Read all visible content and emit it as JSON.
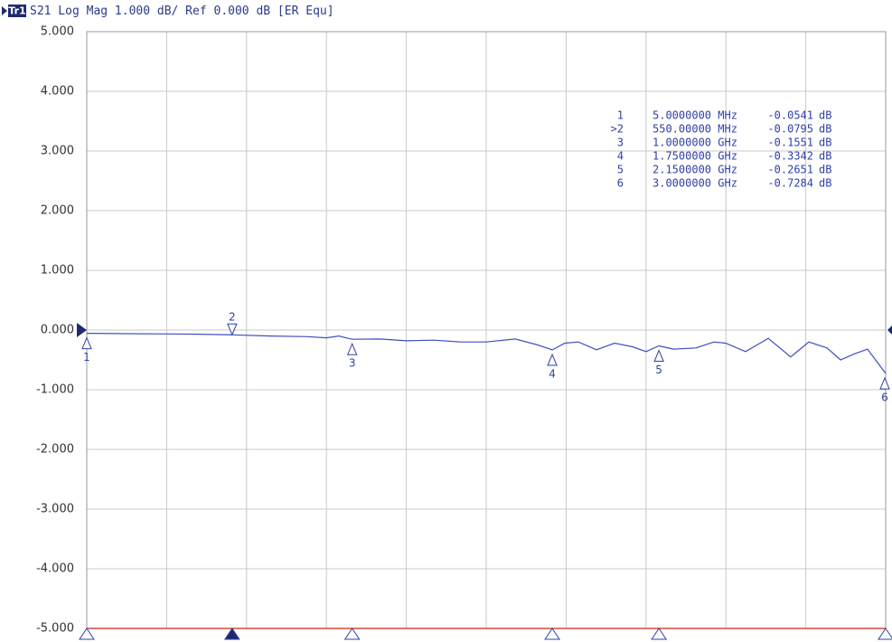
{
  "chart_data": {
    "type": "line",
    "trace_badge": "Tr1",
    "title": "S21 Log Mag 1.000 dB/ Ref 0.000 dB [ER Equ]",
    "xlim": [
      5,
      3000
    ],
    "ylim": [
      -5,
      5
    ],
    "yticks": [
      {
        "value": 5,
        "label": "5.000"
      },
      {
        "value": 4,
        "label": "4.000"
      },
      {
        "value": 3,
        "label": "3.000"
      },
      {
        "value": 2,
        "label": "2.000"
      },
      {
        "value": 1,
        "label": "1.000"
      },
      {
        "value": 0,
        "label": "0.000"
      },
      {
        "value": -1,
        "label": "-1.000"
      },
      {
        "value": -2,
        "label": "-2.000"
      },
      {
        "value": -3,
        "label": "-3.000"
      },
      {
        "value": -4,
        "label": "-4.000"
      },
      {
        "value": -5,
        "label": "-5.000"
      }
    ],
    "grid": true,
    "series": [
      {
        "color": "#3f4fbf",
        "x": [
          5,
          154,
          303,
          425,
          550,
          696,
          832,
          903,
          950,
          1000,
          1103,
          1204,
          1306,
          1408,
          1503,
          1611,
          1696,
          1750,
          1797,
          1848,
          1916,
          1984,
          2051,
          2102,
          2150,
          2204,
          2289,
          2356,
          2400,
          2475,
          2560,
          2644,
          2712,
          2780,
          2831,
          2882,
          2932,
          3000
        ],
        "values": [
          -0.054,
          -0.06,
          -0.065,
          -0.07,
          -0.08,
          -0.1,
          -0.11,
          -0.13,
          -0.1,
          -0.155,
          -0.15,
          -0.18,
          -0.17,
          -0.2,
          -0.2,
          -0.15,
          -0.25,
          -0.334,
          -0.22,
          -0.2,
          -0.33,
          -0.22,
          -0.28,
          -0.36,
          -0.265,
          -0.32,
          -0.3,
          -0.2,
          -0.22,
          -0.36,
          -0.14,
          -0.45,
          -0.2,
          -0.3,
          -0.5,
          -0.4,
          -0.32,
          -0.728
        ]
      }
    ],
    "marker_unit": "dB",
    "markers": [
      {
        "label": "1",
        "table_label": "1",
        "frequency": "5.0000000 MHz",
        "x": 5,
        "value": -0.0541
      },
      {
        "label": "2",
        "table_label": ">2",
        "frequency": "550.00000 MHz",
        "x": 550,
        "value": -0.0795
      },
      {
        "label": "3",
        "table_label": "3",
        "frequency": "1.0000000 GHz",
        "x": 1000,
        "value": -0.1551
      },
      {
        "label": "4",
        "table_label": "4",
        "frequency": "1.7500000 GHz",
        "x": 1750,
        "value": -0.3342
      },
      {
        "label": "5",
        "table_label": "5",
        "frequency": "2.1500000 GHz",
        "x": 2150,
        "value": -0.2651
      },
      {
        "label": "6",
        "table_label": "6",
        "frequency": "3.0000000 GHz",
        "x": 3000,
        "value": -0.7284
      }
    ]
  }
}
